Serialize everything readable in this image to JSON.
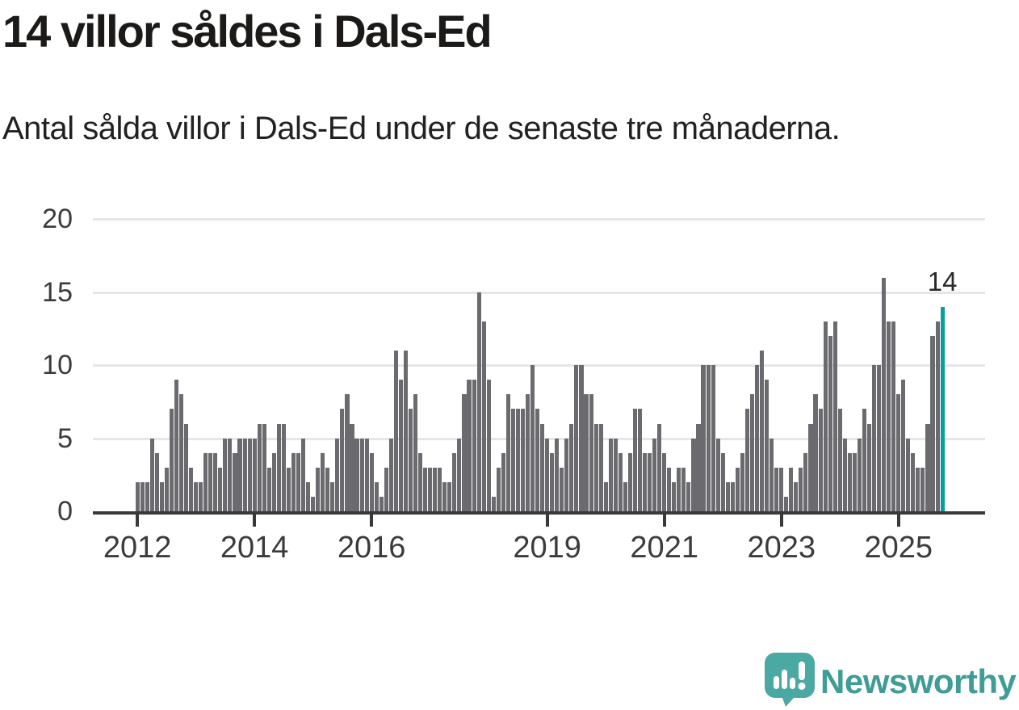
{
  "header": {
    "title": "14 villor såldes i Dals-Ed",
    "subtitle": "Antal sålda villor i Dals-Ed under de senaste tre månaderna."
  },
  "chart_data": {
    "type": "bar",
    "title": "14 villor såldes i Dals-Ed",
    "subtitle": "Antal sålda villor i Dals-Ed under de senaste tre månaderna.",
    "unit": "villor",
    "start_month": "2012-01",
    "end_month": "2025-10",
    "values": [
      2,
      2,
      2,
      5,
      4,
      2,
      3,
      7,
      9,
      8,
      6,
      3,
      2,
      2,
      4,
      4,
      4,
      3,
      5,
      5,
      4,
      5,
      5,
      5,
      5,
      6,
      6,
      3,
      4,
      6,
      6,
      3,
      4,
      4,
      5,
      2,
      1,
      3,
      4,
      3,
      2,
      5,
      7,
      8,
      6,
      5,
      5,
      5,
      4,
      2,
      1,
      3,
      5,
      11,
      9,
      11,
      7,
      8,
      4,
      3,
      3,
      3,
      3,
      2,
      2,
      4,
      5,
      8,
      9,
      9,
      15,
      13,
      9,
      1,
      3,
      4,
      8,
      7,
      7,
      7,
      8,
      10,
      7,
      6,
      5,
      4,
      5,
      3,
      5,
      6,
      10,
      10,
      8,
      8,
      6,
      6,
      2,
      5,
      5,
      4,
      2,
      4,
      7,
      7,
      4,
      4,
      5,
      6,
      4,
      3,
      2,
      3,
      3,
      2,
      5,
      6,
      10,
      10,
      10,
      5,
      4,
      2,
      2,
      3,
      4,
      7,
      8,
      10,
      11,
      9,
      5,
      3,
      3,
      1,
      3,
      2,
      3,
      4,
      6,
      8,
      7,
      13,
      12,
      13,
      7,
      5,
      4,
      4,
      5,
      7,
      6,
      10,
      10,
      16,
      13,
      13,
      8,
      9,
      5,
      4,
      3,
      3,
      6,
      12,
      13,
      14
    ],
    "highlight": {
      "index": 165,
      "label": "14",
      "color": "#099ea0"
    },
    "yticks": [
      0,
      5,
      10,
      15,
      20
    ],
    "ylim": [
      0,
      20
    ],
    "xticks": [
      {
        "label": "2012",
        "month_index": 0
      },
      {
        "label": "2014",
        "month_index": 24
      },
      {
        "label": "2016",
        "month_index": 48
      },
      {
        "label": "2019",
        "month_index": 84
      },
      {
        "label": "2021",
        "month_index": 108
      },
      {
        "label": "2023",
        "month_index": 132
      },
      {
        "label": "2025",
        "month_index": 156
      }
    ],
    "grid": true,
    "legend": "none",
    "bar_color": "#6b6b6f"
  },
  "colors": {
    "background": "#ffffff",
    "bar": "#6b6b6f",
    "highlight": "#099ea0",
    "gridline": "#e6e6e6",
    "axis": "#39393b",
    "text": "#1b1a18",
    "axis_text": "#3b3b3d"
  },
  "logo": {
    "text": "Newsworthy",
    "icon": "speech-bubble-chart-icon",
    "text_color": "#3f9c96",
    "bubble_color": "#4aa9a2"
  }
}
